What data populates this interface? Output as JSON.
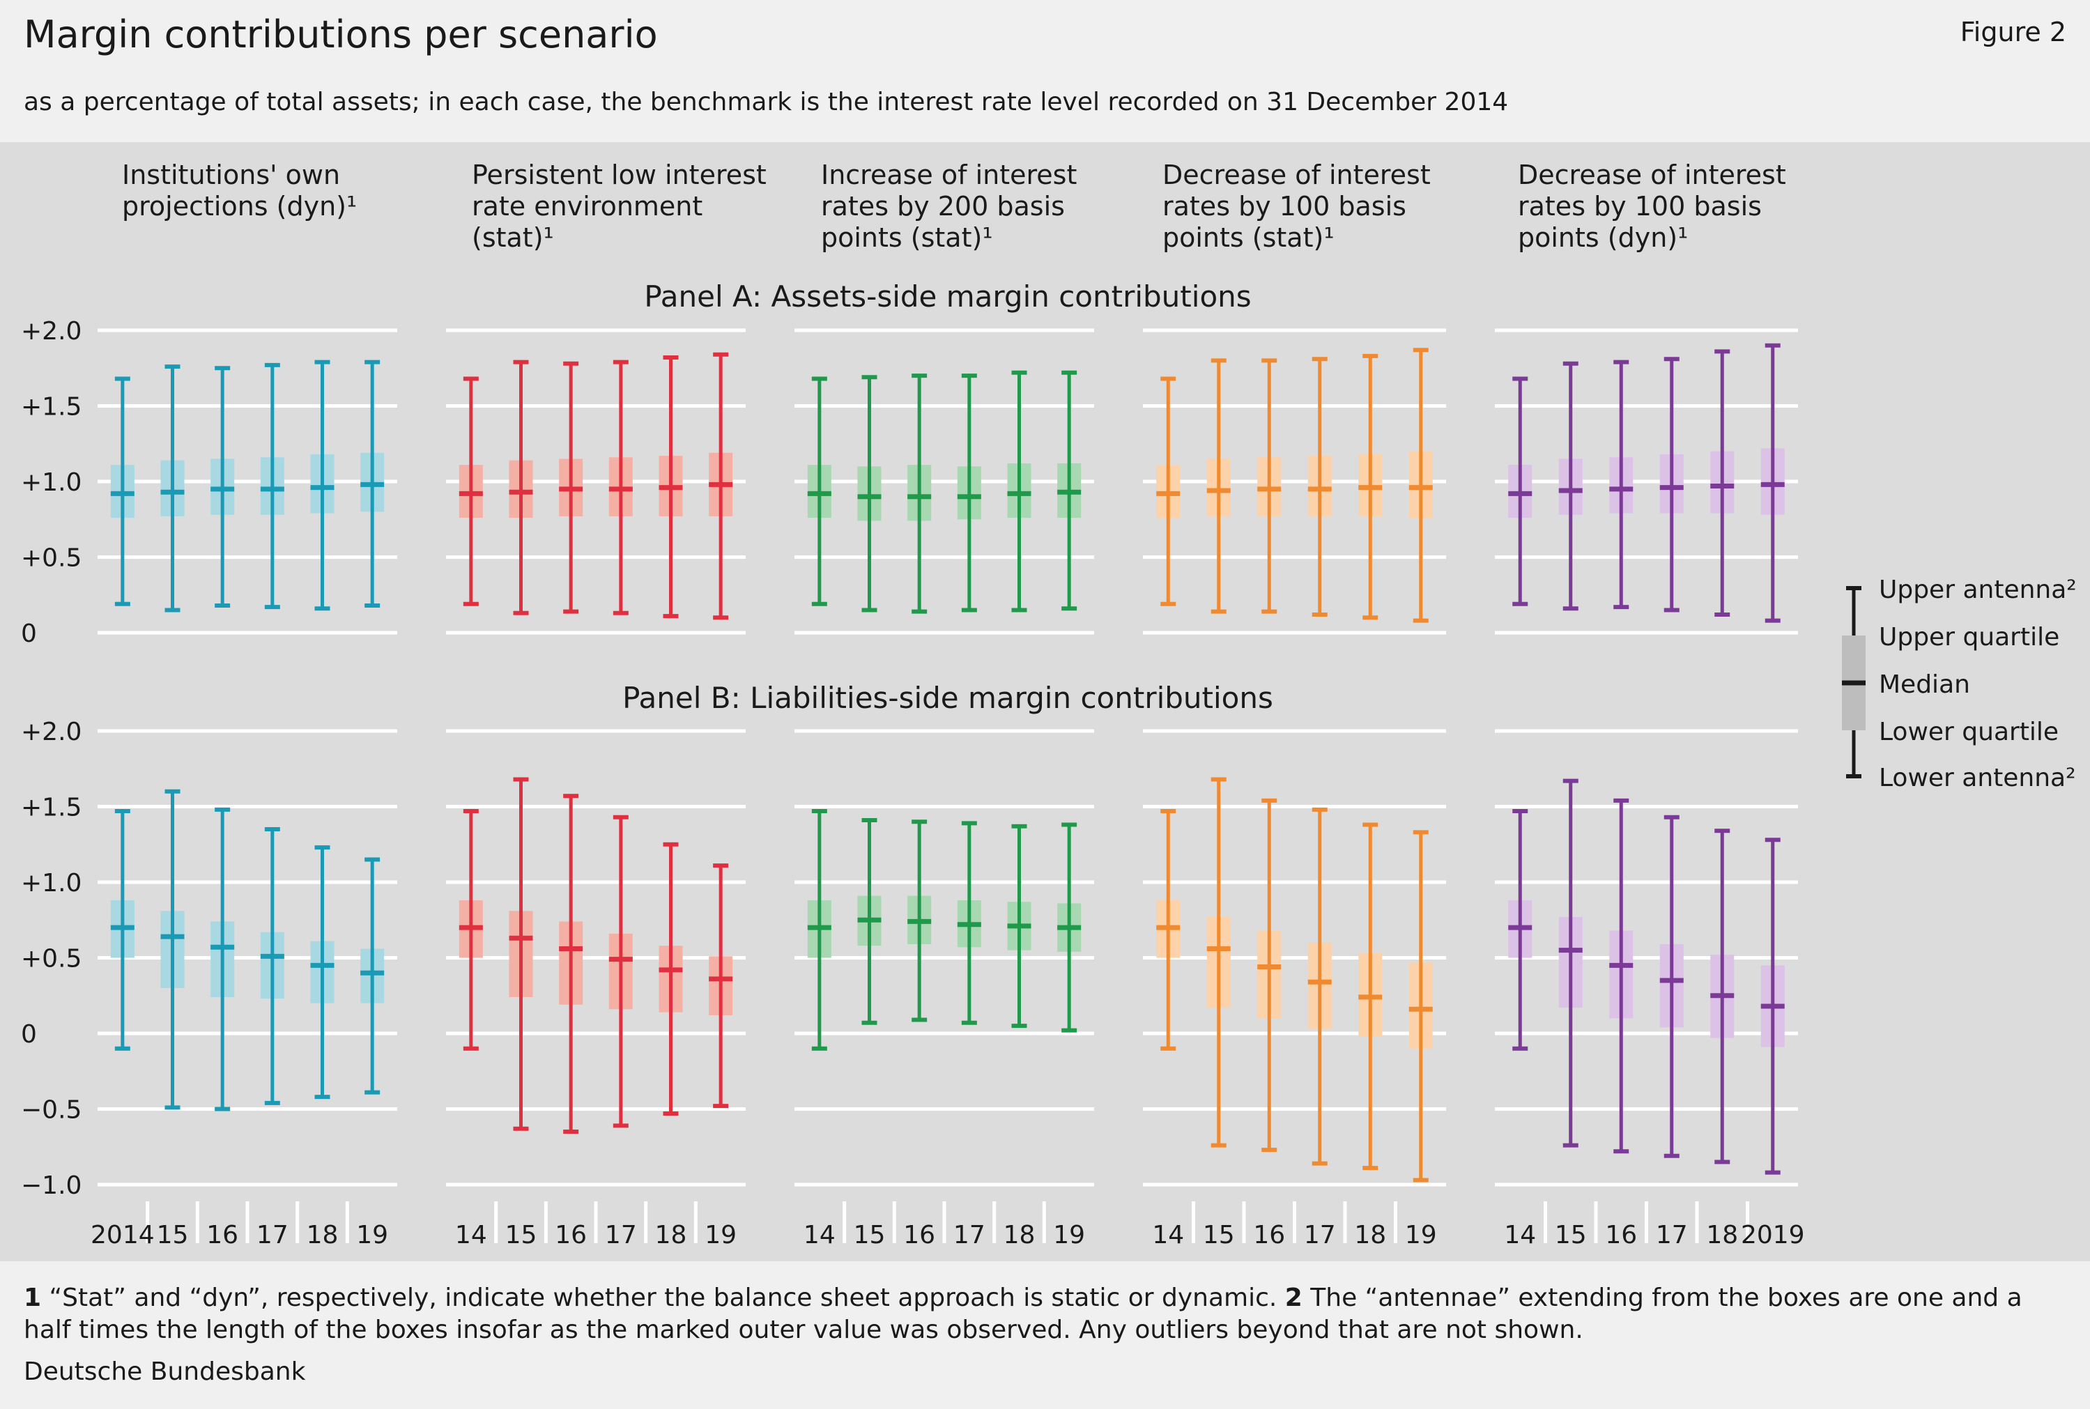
{
  "header": {
    "title": "Margin contributions per scenario",
    "figure_label": "Figure 2",
    "subtitle": "as a percentage of total assets; in each case, the benchmark is the interest rate level recorded on 31 December 2014"
  },
  "footer": {
    "note1_num": "1",
    "note1_text": " “Stat” and “dyn”, respectively, indicate whether the balance sheet approach is static or dynamic. ",
    "note2_num": "2",
    "note2_text": " The “antennae” extending from the boxes are one and a half times the length of the boxes insofar as the marked outer value was observed. Any outliers beyond that are not shown.",
    "source": "Deutsche Bundesbank"
  },
  "legend": {
    "upper_antenna": "Upper antenna²",
    "upper_quartile": "Upper quartile",
    "median": "Median",
    "lower_quartile": "Lower quartile",
    "lower_antenna": "Lower antenna²"
  },
  "chart_data": {
    "type": "boxplot",
    "scenarios": [
      {
        "title_lines": [
          "Institutions' own",
          "projections (dyn)¹"
        ],
        "color": "#1a9ab5",
        "box_color": "#a8d8e2",
        "x_labels": [
          "2014",
          "15",
          "16",
          "17",
          "18",
          "19"
        ]
      },
      {
        "title_lines": [
          "Persistent low interest",
          "rate environment",
          "(stat)¹"
        ],
        "color": "#e03040",
        "box_color": "#f5b0a5",
        "x_labels": [
          "14",
          "15",
          "16",
          "17",
          "18",
          "19"
        ]
      },
      {
        "title_lines": [
          "Increase of interest",
          "rates by 200 basis",
          "points (stat)¹"
        ],
        "color": "#1e9a4a",
        "box_color": "#a8d8b2",
        "x_labels": [
          "14",
          "15",
          "16",
          "17",
          "18",
          "19"
        ]
      },
      {
        "title_lines": [
          "Decrease of interest",
          "rates by 100 basis",
          "points (stat)¹"
        ],
        "color": "#f08a30",
        "box_color": "#fbd2aa",
        "x_labels": [
          "14",
          "15",
          "16",
          "17",
          "18",
          "19"
        ]
      },
      {
        "title_lines": [
          "Decrease of interest",
          "rates by 100 basis",
          "points (dyn)¹"
        ],
        "color": "#7a3a96",
        "box_color": "#dcc2e6",
        "x_labels": [
          "14",
          "15",
          "16",
          "17",
          "18",
          "2019"
        ]
      }
    ],
    "panels": [
      {
        "title": "Panel A: Assets-side margin contributions",
        "ylim": [
          0,
          2.0
        ],
        "yticks": [
          0,
          0.5,
          1.0,
          1.5,
          2.0
        ],
        "ytick_labels": [
          "0",
          "+0.5",
          "+1.0",
          "+1.5",
          "+2.0"
        ],
        "data": [
          [
            [
              0.19,
              0.76,
              0.92,
              1.11,
              1.68
            ],
            [
              0.15,
              0.77,
              0.93,
              1.14,
              1.76
            ],
            [
              0.18,
              0.78,
              0.95,
              1.15,
              1.75
            ],
            [
              0.17,
              0.78,
              0.95,
              1.16,
              1.77
            ],
            [
              0.16,
              0.79,
              0.96,
              1.18,
              1.79
            ],
            [
              0.18,
              0.8,
              0.98,
              1.19,
              1.79
            ]
          ],
          [
            [
              0.19,
              0.76,
              0.92,
              1.11,
              1.68
            ],
            [
              0.13,
              0.76,
              0.93,
              1.14,
              1.79
            ],
            [
              0.14,
              0.77,
              0.95,
              1.15,
              1.78
            ],
            [
              0.13,
              0.77,
              0.95,
              1.16,
              1.79
            ],
            [
              0.11,
              0.77,
              0.96,
              1.17,
              1.82
            ],
            [
              0.1,
              0.77,
              0.98,
              1.19,
              1.84
            ]
          ],
          [
            [
              0.19,
              0.76,
              0.92,
              1.11,
              1.68
            ],
            [
              0.15,
              0.74,
              0.9,
              1.1,
              1.69
            ],
            [
              0.14,
              0.74,
              0.9,
              1.11,
              1.7
            ],
            [
              0.15,
              0.75,
              0.9,
              1.1,
              1.7
            ],
            [
              0.15,
              0.76,
              0.92,
              1.12,
              1.72
            ],
            [
              0.16,
              0.76,
              0.93,
              1.12,
              1.72
            ]
          ],
          [
            [
              0.19,
              0.76,
              0.92,
              1.11,
              1.68
            ],
            [
              0.14,
              0.77,
              0.94,
              1.15,
              1.8
            ],
            [
              0.14,
              0.77,
              0.95,
              1.16,
              1.8
            ],
            [
              0.12,
              0.77,
              0.95,
              1.17,
              1.81
            ],
            [
              0.1,
              0.77,
              0.96,
              1.18,
              1.83
            ],
            [
              0.08,
              0.76,
              0.96,
              1.2,
              1.87
            ]
          ],
          [
            [
              0.19,
              0.76,
              0.92,
              1.11,
              1.68
            ],
            [
              0.16,
              0.78,
              0.94,
              1.15,
              1.78
            ],
            [
              0.17,
              0.79,
              0.95,
              1.16,
              1.79
            ],
            [
              0.15,
              0.79,
              0.96,
              1.18,
              1.81
            ],
            [
              0.12,
              0.79,
              0.97,
              1.2,
              1.86
            ],
            [
              0.08,
              0.78,
              0.98,
              1.22,
              1.9
            ]
          ]
        ]
      },
      {
        "title": "Panel B: Liabilities-side margin contributions",
        "ylim": [
          -1.0,
          2.0
        ],
        "yticks": [
          -1.0,
          -0.5,
          0,
          0.5,
          1.0,
          1.5,
          2.0
        ],
        "ytick_labels": [
          "−1.0",
          "−0.5",
          "0",
          "+0.5",
          "+1.0",
          "+1.5",
          "+2.0"
        ],
        "data": [
          [
            [
              -0.1,
              0.5,
              0.7,
              0.88,
              1.47
            ],
            [
              -0.49,
              0.3,
              0.64,
              0.81,
              1.6
            ],
            [
              -0.5,
              0.24,
              0.57,
              0.74,
              1.48
            ],
            [
              -0.46,
              0.23,
              0.51,
              0.67,
              1.35
            ],
            [
              -0.42,
              0.2,
              0.45,
              0.61,
              1.23
            ],
            [
              -0.39,
              0.2,
              0.4,
              0.56,
              1.15
            ]
          ],
          [
            [
              -0.1,
              0.5,
              0.7,
              0.88,
              1.47
            ],
            [
              -0.63,
              0.24,
              0.63,
              0.81,
              1.68
            ],
            [
              -0.65,
              0.19,
              0.56,
              0.74,
              1.57
            ],
            [
              -0.61,
              0.16,
              0.49,
              0.66,
              1.43
            ],
            [
              -0.53,
              0.14,
              0.42,
              0.58,
              1.25
            ],
            [
              -0.48,
              0.12,
              0.36,
              0.51,
              1.11
            ]
          ],
          [
            [
              -0.1,
              0.5,
              0.7,
              0.88,
              1.47
            ],
            [
              0.07,
              0.58,
              0.75,
              0.91,
              1.41
            ],
            [
              0.09,
              0.59,
              0.74,
              0.91,
              1.4
            ],
            [
              0.07,
              0.57,
              0.72,
              0.88,
              1.39
            ],
            [
              0.05,
              0.55,
              0.71,
              0.87,
              1.37
            ],
            [
              0.02,
              0.54,
              0.7,
              0.86,
              1.38
            ]
          ],
          [
            [
              -0.1,
              0.5,
              0.7,
              0.88,
              1.47
            ],
            [
              -0.74,
              0.17,
              0.56,
              0.77,
              1.68
            ],
            [
              -0.77,
              0.1,
              0.44,
              0.68,
              1.54
            ],
            [
              -0.86,
              0.03,
              0.34,
              0.6,
              1.48
            ],
            [
              -0.89,
              -0.02,
              0.24,
              0.53,
              1.38
            ],
            [
              -0.97,
              -0.1,
              0.16,
              0.47,
              1.33
            ]
          ],
          [
            [
              -0.1,
              0.5,
              0.7,
              0.88,
              1.47
            ],
            [
              -0.74,
              0.17,
              0.55,
              0.77,
              1.67
            ],
            [
              -0.78,
              0.1,
              0.45,
              0.68,
              1.54
            ],
            [
              -0.81,
              0.04,
              0.35,
              0.59,
              1.43
            ],
            [
              -0.85,
              -0.03,
              0.25,
              0.52,
              1.34
            ],
            [
              -0.92,
              -0.09,
              0.18,
              0.45,
              1.28
            ]
          ]
        ]
      }
    ]
  }
}
